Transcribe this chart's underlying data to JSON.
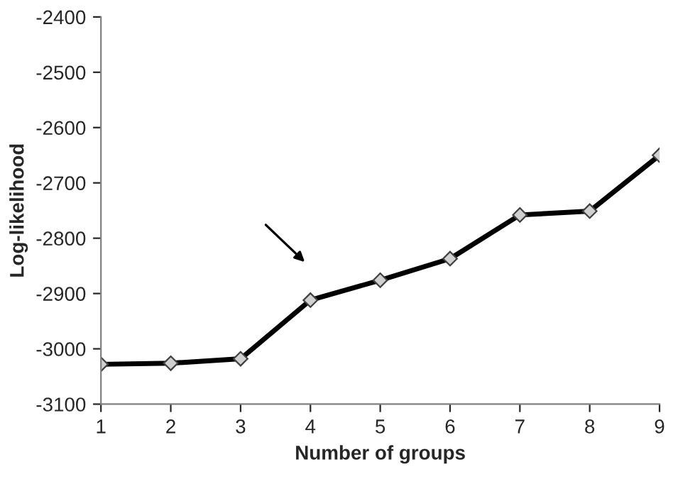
{
  "chart_data": {
    "type": "line",
    "xlabel": "Number of groups",
    "ylabel": "Log-likelihood",
    "x": [
      1,
      2,
      3,
      4,
      5,
      6,
      7,
      8,
      9
    ],
    "series": [
      {
        "color": "#000000",
        "values": [
          -3028,
          -3026,
          -3018,
          -2912,
          -2876,
          -2837,
          -2758,
          -2751,
          -2650
        ]
      }
    ],
    "xlim": [
      1,
      9
    ],
    "xticks": [
      1,
      2,
      3,
      4,
      5,
      6,
      7,
      8,
      9
    ],
    "ylim": [
      -3100,
      -2400
    ],
    "yticks": [
      -3100,
      -3000,
      -2900,
      -2800,
      -2700,
      -2600,
      -2500,
      -2400
    ],
    "marker": "diamond",
    "line_style": "solid",
    "grid": false,
    "legend": false
  }
}
